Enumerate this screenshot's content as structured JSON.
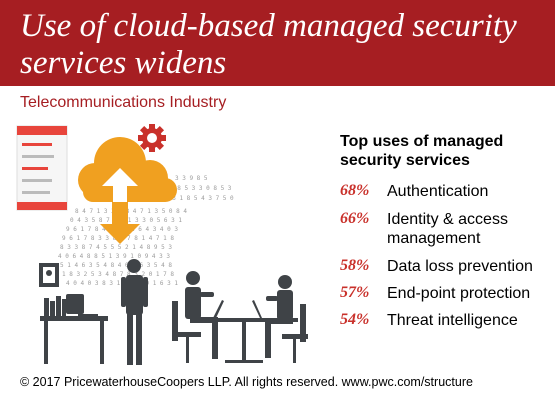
{
  "title": "Use of cloud-based managed security services widens",
  "subtitle": "Telecommunications Industry",
  "uses_heading": "Top uses of managed security services",
  "uses": [
    {
      "pct": "68%",
      "label": "Authentication"
    },
    {
      "pct": "66%",
      "label": "Identity & access management"
    },
    {
      "pct": "58%",
      "label": "Data loss prevention"
    },
    {
      "pct": "57%",
      "label": "End-point protection"
    },
    {
      "pct": "54%",
      "label": "Threat intelligence"
    }
  ],
  "footer": "© 2017 PricewaterhouseCoopers LLP.  All rights reserved. www.pwc.com/structure",
  "colors": {
    "brand": "#a61e22",
    "accent": "#c9312b",
    "cloud": "#f0a020",
    "figure": "#3f4347"
  },
  "icons": [
    "cloud-icon",
    "gear-icon",
    "server-list-icon",
    "upload-arrow-icon",
    "download-arrow-icon",
    "picture-frame-icon"
  ]
}
